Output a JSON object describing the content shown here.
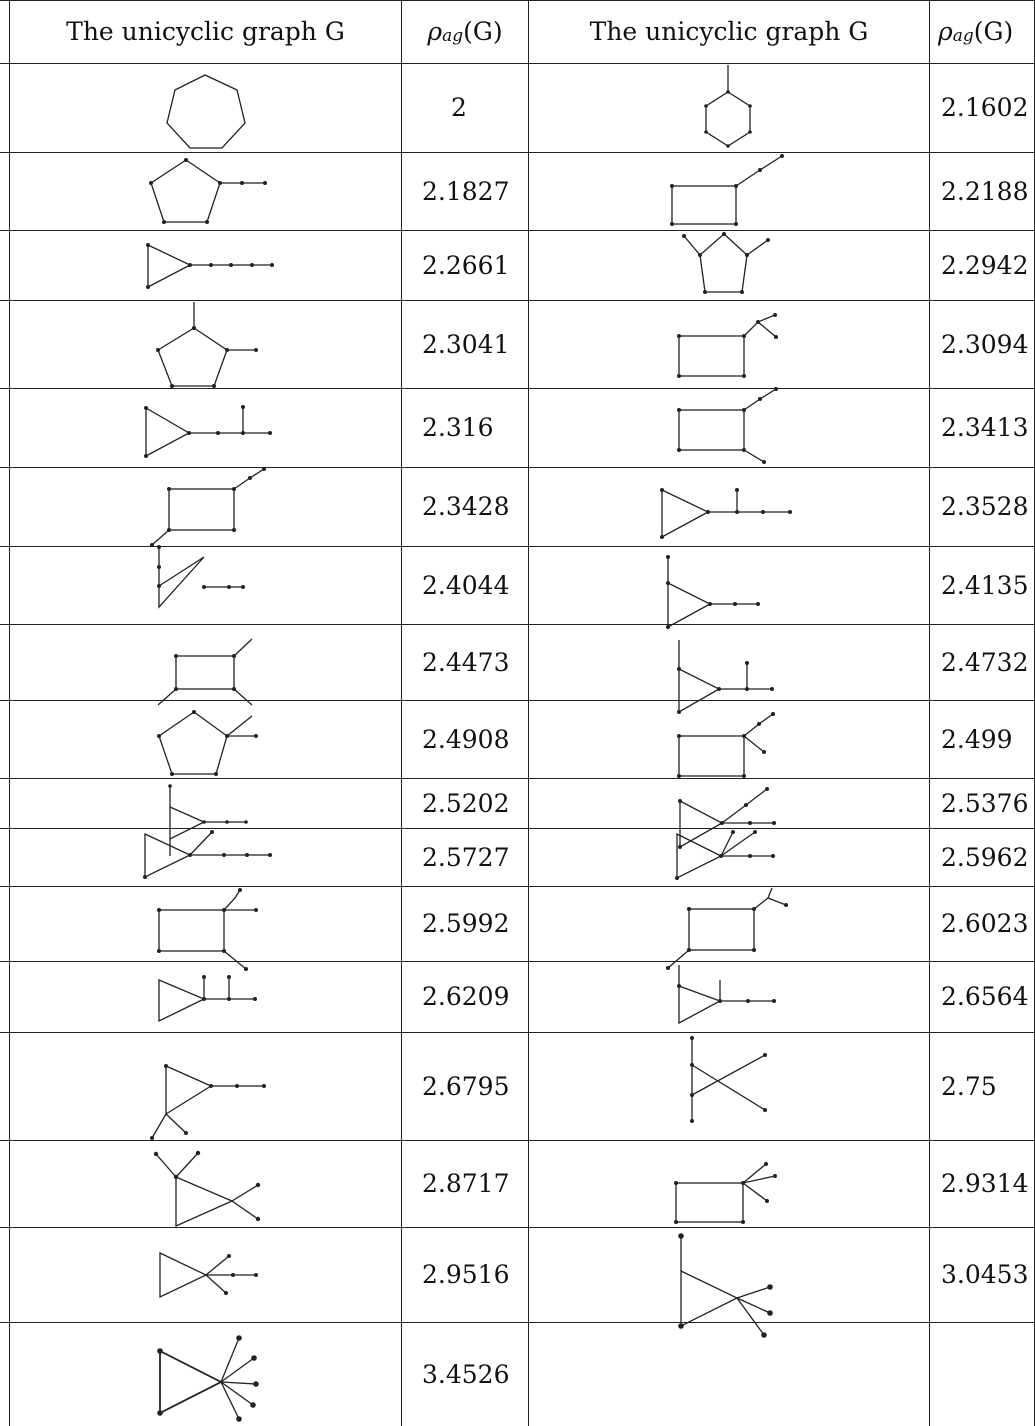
{
  "table": {
    "headers": {
      "graph_col": "The unicyclic graph G",
      "rho_symbol": "ρ",
      "rho_sub": "ag",
      "rho_arg": "(G)"
    },
    "rows": [
      {
        "left": "2",
        "right": "2.1602"
      },
      {
        "left": "2.1827",
        "right": "2.2188"
      },
      {
        "left": "2.2661",
        "right": "2.2942"
      },
      {
        "left": "2.3041",
        "right": "2.3094"
      },
      {
        "left": "2.316",
        "right": "2.3413"
      },
      {
        "left": "2.3428",
        "right": "2.3528"
      },
      {
        "left": "2.4044",
        "right": "2.4135"
      },
      {
        "left": "2.4473",
        "right": "2.4732"
      },
      {
        "left": "2.4908",
        "right": "2.499"
      },
      {
        "left": "2.5202",
        "right": "2.5376"
      },
      {
        "left": "2.5727",
        "right": "2.5962"
      },
      {
        "left": "2.5992",
        "right": "2.6023"
      },
      {
        "left": "2.6209",
        "right": "2.6564"
      },
      {
        "left": "2.6795",
        "right": "2.75"
      },
      {
        "left": "2.8717",
        "right": "2.9314"
      },
      {
        "left": "2.9516",
        "right": "3.0453"
      },
      {
        "left": "3.4526",
        "right": ""
      }
    ]
  }
}
